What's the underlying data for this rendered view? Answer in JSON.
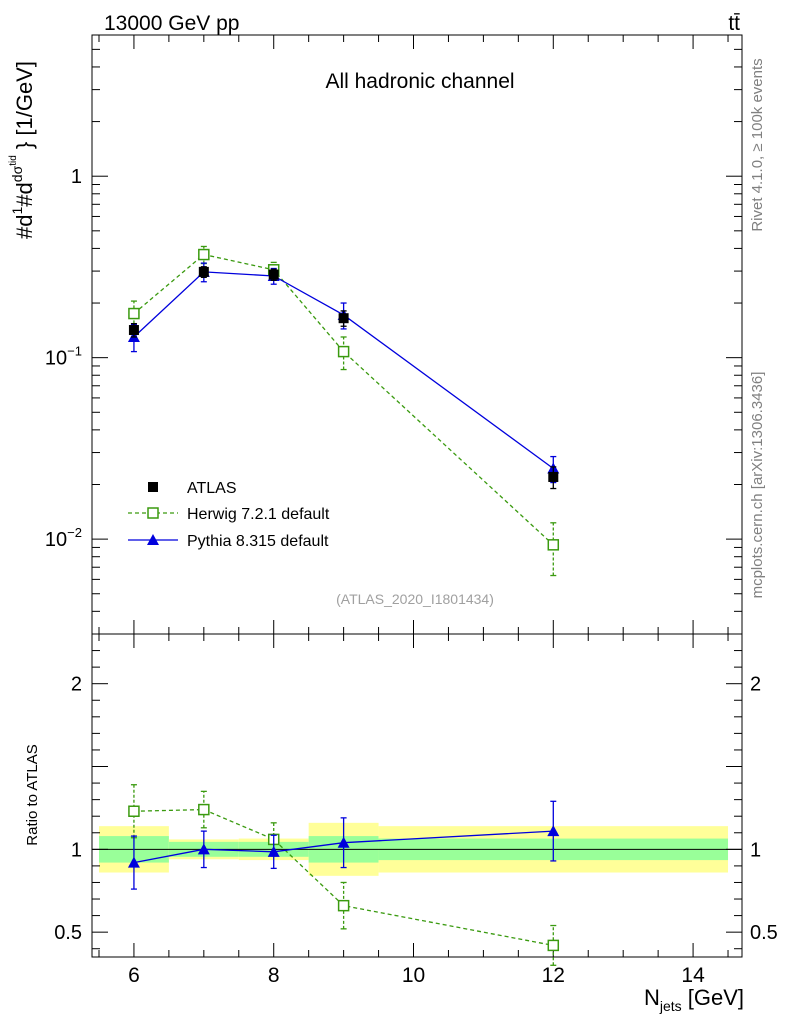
{
  "header": {
    "energy_label": "13000 GeV pp",
    "process_label": "tt̄",
    "channel_label": "All hadronic channel",
    "analysis_id": "(ATLAS_2020_I1801434)",
    "side_label_top": "Rivet 4.1.0, ≥ 100k events",
    "side_label_bottom": "mcplots.cern.ch [arXiv:1306.3436]"
  },
  "colors": {
    "atlas": "#000000",
    "herwig": "#3a9a0f",
    "pythia": "#0000dd",
    "band_inner": "#99ff99",
    "band_outer": "#ffff99"
  },
  "chart_data": [
    {
      "type": "scatter",
      "panel": "main",
      "ylabel": "#d1/σ#d dσ^{tid}/d{N_jets} [1/GeV]",
      "xlabel": "N_jets [GeV]",
      "yscale": "log",
      "xlim": [
        5.4,
        14.7
      ],
      "ylim": [
        0.003,
        6
      ],
      "y_ticks": [
        {
          "value": 1,
          "label": "1"
        },
        {
          "value": 0.1,
          "label": "10^-1"
        },
        {
          "value": 0.01,
          "label": "10^-2"
        }
      ],
      "legend": [
        {
          "name": "ATLAS",
          "marker": "square"
        },
        {
          "name": "Herwig 7.2.1 default",
          "marker": "open-square"
        },
        {
          "name": "Pythia 8.315 default",
          "marker": "triangle"
        }
      ],
      "series": [
        {
          "name": "ATLAS",
          "x": [
            6,
            7,
            8,
            9,
            12
          ],
          "y": [
            0.142,
            0.297,
            0.287,
            0.165,
            0.022
          ],
          "err": [
            0.012,
            0.02,
            0.02,
            0.016,
            0.003
          ]
        },
        {
          "name": "Herwig 7.2.1 default",
          "x": [
            6,
            7,
            8,
            9,
            12
          ],
          "y": [
            0.175,
            0.37,
            0.305,
            0.108,
            0.0093
          ],
          "err": [
            0.03,
            0.04,
            0.03,
            0.022,
            0.003
          ]
        },
        {
          "name": "Pythia 8.315 default",
          "x": [
            6,
            7,
            8,
            9,
            12
          ],
          "y": [
            0.13,
            0.297,
            0.282,
            0.172,
            0.0245
          ],
          "err": [
            0.022,
            0.035,
            0.028,
            0.028,
            0.004
          ]
        }
      ]
    },
    {
      "type": "scatter",
      "panel": "ratio",
      "ylabel": "Ratio to ATLAS",
      "xlabel": "N_jets [GeV]",
      "xlim": [
        5.4,
        14.7
      ],
      "ylim": [
        0.35,
        2.3
      ],
      "x_ticks": [
        6,
        8,
        10,
        12,
        14
      ],
      "y_ticks": [
        {
          "value": 0.5,
          "label": "0.5"
        },
        {
          "value": 1,
          "label": "1"
        },
        {
          "value": 2,
          "label": "2"
        }
      ],
      "bands": [
        {
          "x0": 5.5,
          "x1": 6.5,
          "inner": [
            0.92,
            1.08
          ],
          "outer": [
            0.86,
            1.14
          ]
        },
        {
          "x0": 6.5,
          "x1": 7.5,
          "inner": [
            0.955,
            1.045
          ],
          "outer": [
            0.94,
            1.06
          ]
        },
        {
          "x0": 7.5,
          "x1": 8.5,
          "inner": [
            0.955,
            1.045
          ],
          "outer": [
            0.935,
            1.065
          ]
        },
        {
          "x0": 8.5,
          "x1": 9.5,
          "inner": [
            0.92,
            1.08
          ],
          "outer": [
            0.84,
            1.16
          ]
        },
        {
          "x0": 9.5,
          "x1": 14.5,
          "inner": [
            0.935,
            1.065
          ],
          "outer": [
            0.86,
            1.14
          ]
        }
      ],
      "series": [
        {
          "name": "Herwig 7.2.1 default",
          "x": [
            6,
            7,
            8,
            9,
            12
          ],
          "y": [
            1.23,
            1.24,
            1.06,
            0.66,
            0.42
          ],
          "err": [
            0.16,
            0.11,
            0.1,
            0.14,
            0.12
          ]
        },
        {
          "name": "Pythia 8.315 default",
          "x": [
            6,
            7,
            8,
            9,
            12
          ],
          "y": [
            0.92,
            1.0,
            0.985,
            1.04,
            1.11
          ],
          "err": [
            0.16,
            0.11,
            0.1,
            0.15,
            0.18
          ]
        }
      ]
    }
  ]
}
